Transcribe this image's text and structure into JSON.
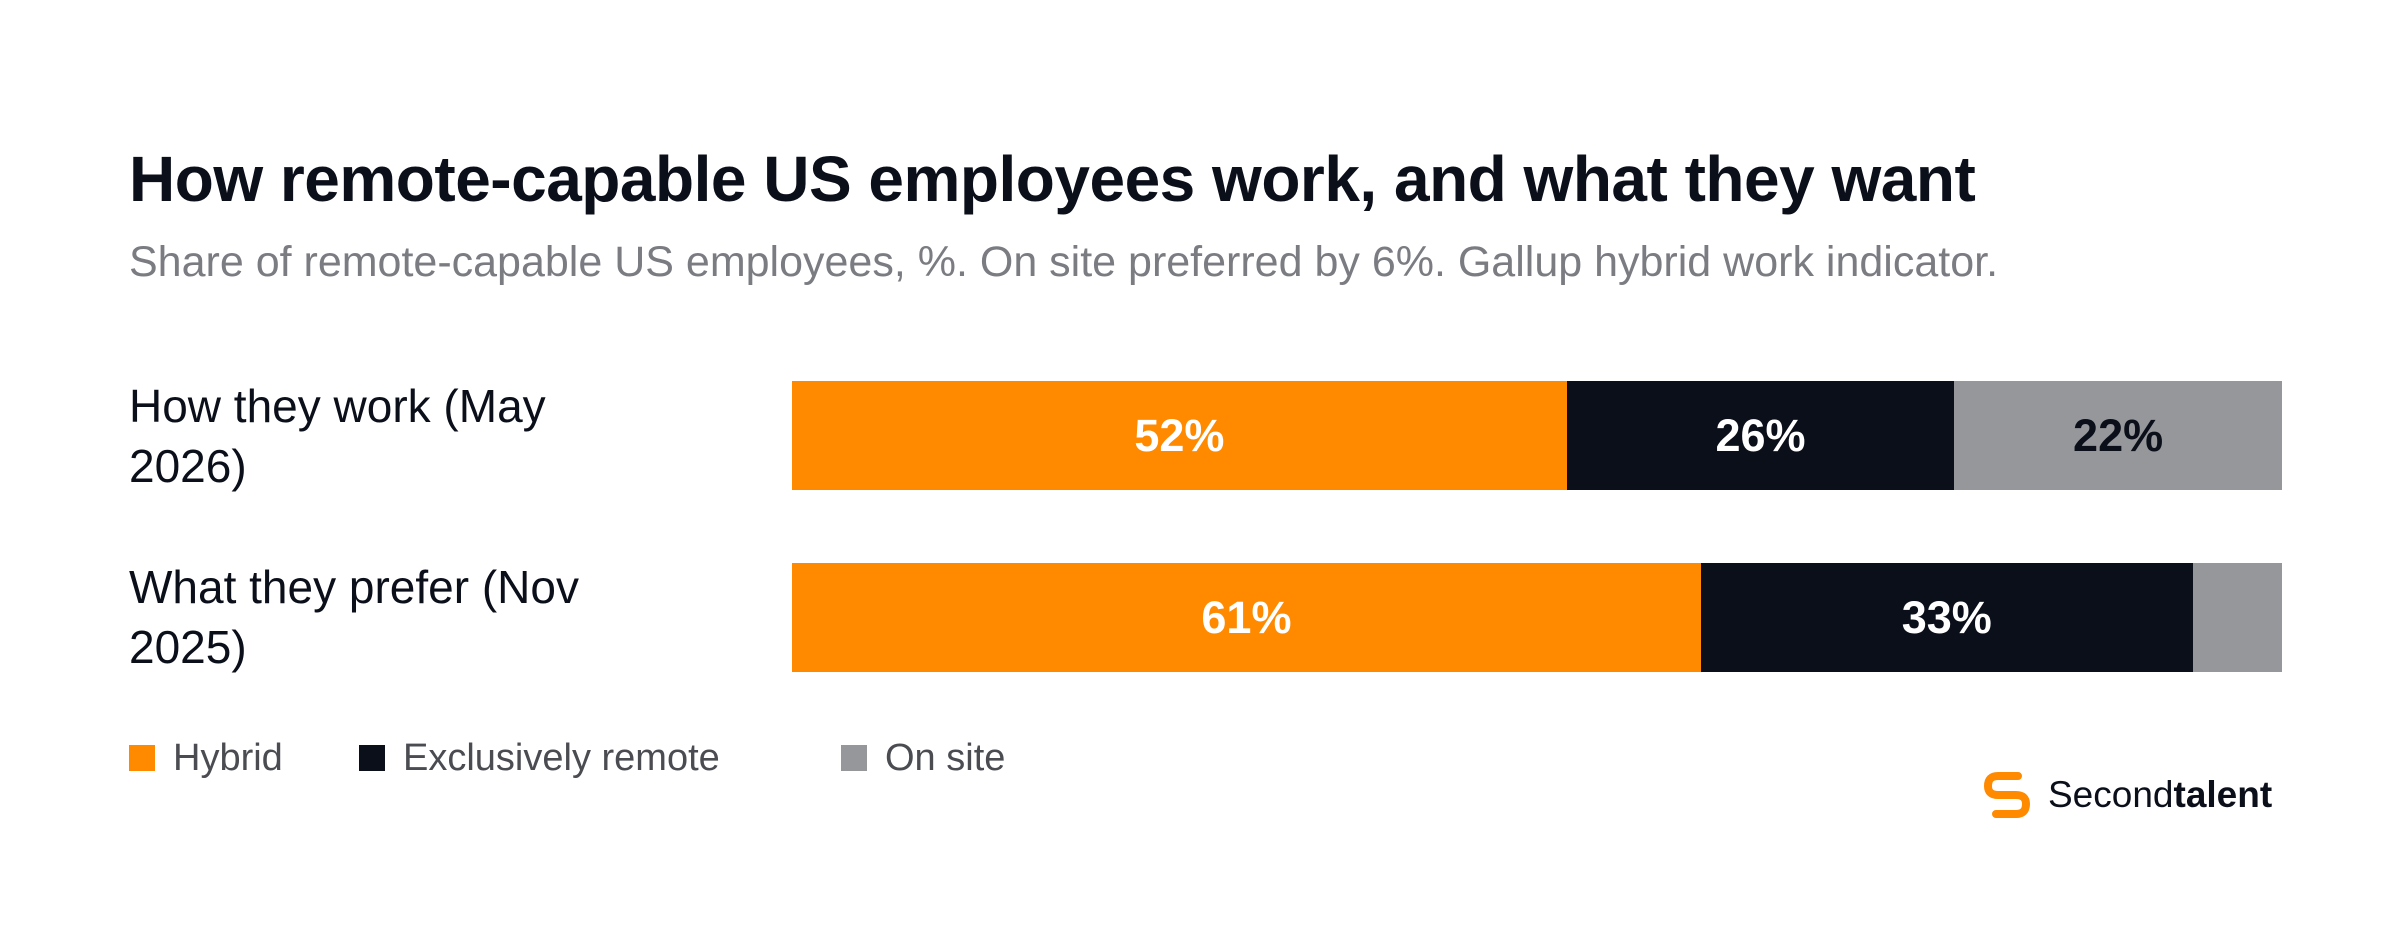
{
  "chart_data": {
    "type": "bar",
    "orientation": "horizontal",
    "stacked": true,
    "title": "How remote-capable US employees work, and what they want",
    "subtitle": "Share of remote-capable US employees, %. On site preferred by 6%. Gallup hybrid work indicator.",
    "categories": [
      "How they work (May 2026)",
      "What they prefer (Nov 2025)"
    ],
    "series": [
      {
        "name": "Hybrid",
        "values": [
          52,
          61
        ],
        "labels": [
          "52%",
          "61%"
        ],
        "color": "#ff8a00",
        "text_color": "#ffffff"
      },
      {
        "name": "Exclusively remote",
        "values": [
          26,
          33
        ],
        "labels": [
          "26%",
          "33%"
        ],
        "color": "#0b0f1a",
        "text_color": "#ffffff"
      },
      {
        "name": "On site",
        "values": [
          22,
          6
        ],
        "labels": [
          "22%",
          ""
        ],
        "color": "#96979b",
        "text_color": "#0b0f1a"
      }
    ],
    "xlim": [
      0,
      100
    ],
    "grid": false,
    "legend_position": "bottom-left"
  },
  "brand": {
    "name_regular": "Second",
    "name_bold": "talent",
    "logo_color": "#ff8a00"
  }
}
